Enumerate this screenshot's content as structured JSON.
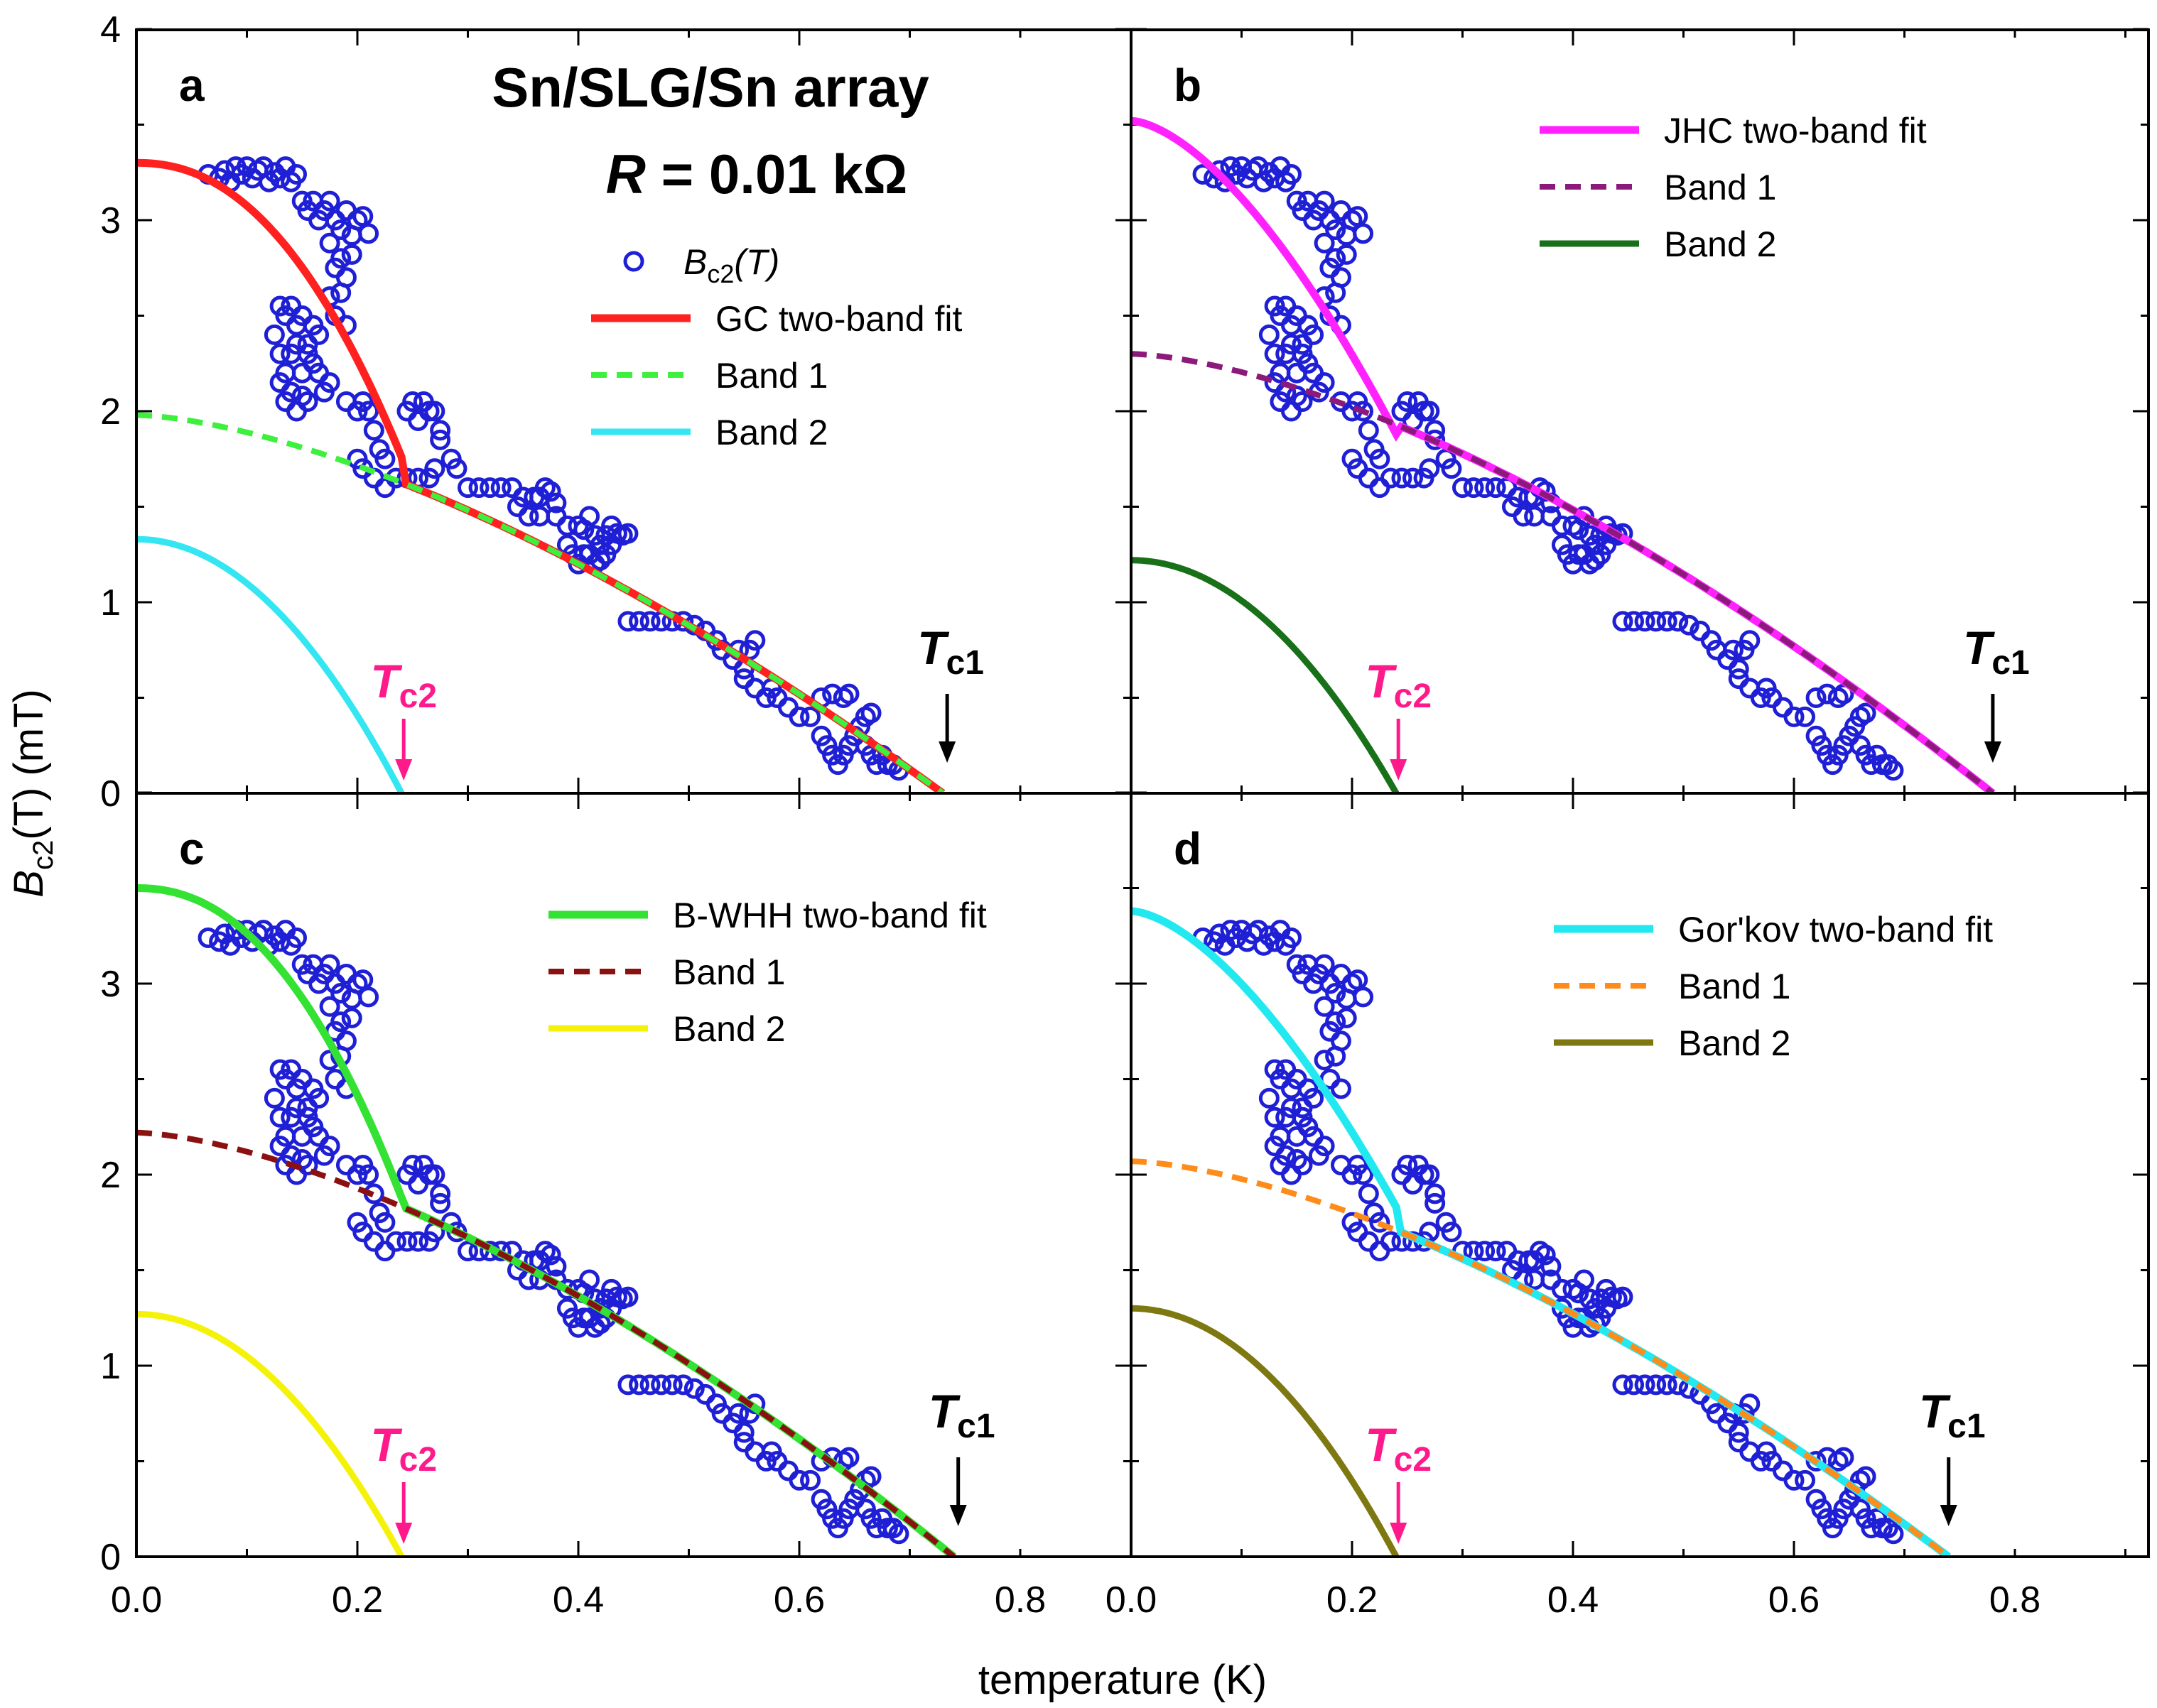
{
  "figure": {
    "x_axis_label": "temperature (K)",
    "y_axis_label_prefix": "B",
    "y_axis_label_sub": "c2",
    "y_axis_label_suffix": "(T) (mT)",
    "x_ticks": [
      0.0,
      0.2,
      0.4,
      0.6,
      0.8
    ],
    "x_tick_labels": [
      "0.0",
      "0.2",
      "0.4",
      "0.6",
      "0.8"
    ],
    "y_ticks_top": [
      0,
      1,
      2,
      3,
      4
    ],
    "y_tick_labels_top": [
      "0",
      "1",
      "2",
      "3",
      "4"
    ],
    "y_ticks_bottom": [
      0,
      1,
      2,
      3
    ],
    "y_tick_labels_bottom": [
      "0",
      "1",
      "2",
      "3"
    ],
    "xlim": [
      0.0,
      0.9
    ],
    "ylim": [
      0,
      4
    ],
    "title_line1": "Sn/SLG/Sn array",
    "title_line2_R": "R",
    "title_line2_value": " = 0.01 kΩ",
    "data_legend_prefix": "B",
    "data_legend_sub": "c2",
    "data_legend_suffix": "(T)",
    "tc2_main": "T",
    "tc2_sub": "c2",
    "tc1_main": "T",
    "tc1_sub": "c1",
    "colors": {
      "data_marker": "#1f1fd6",
      "tc2_arrow": "#ff1a8c",
      "tc1_arrow": "#000000"
    }
  },
  "chart_data": {
    "type": "scatter",
    "title": "Sn/SLG/Sn array  R = 0.01 kΩ",
    "xlabel": "temperature (K)",
    "ylabel": "Bc2(T) (mT)",
    "xlim": [
      0.0,
      0.9
    ],
    "ylim": [
      0,
      4
    ],
    "grid": false,
    "data_points": [
      [
        0.065,
        3.24
      ],
      [
        0.075,
        3.22
      ],
      [
        0.08,
        3.26
      ],
      [
        0.085,
        3.2
      ],
      [
        0.09,
        3.28
      ],
      [
        0.095,
        3.24
      ],
      [
        0.1,
        3.28
      ],
      [
        0.105,
        3.22
      ],
      [
        0.11,
        3.26
      ],
      [
        0.115,
        3.28
      ],
      [
        0.12,
        3.2
      ],
      [
        0.125,
        3.25
      ],
      [
        0.13,
        3.22
      ],
      [
        0.135,
        3.28
      ],
      [
        0.14,
        3.2
      ],
      [
        0.145,
        3.24
      ],
      [
        0.15,
        3.1
      ],
      [
        0.155,
        3.05
      ],
      [
        0.16,
        3.1
      ],
      [
        0.165,
        3.0
      ],
      [
        0.17,
        3.05
      ],
      [
        0.175,
        3.1
      ],
      [
        0.18,
        3.0
      ],
      [
        0.185,
        2.95
      ],
      [
        0.19,
        3.05
      ],
      [
        0.195,
        2.92
      ],
      [
        0.2,
        3.0
      ],
      [
        0.205,
        3.02
      ],
      [
        0.21,
        2.93
      ],
      [
        0.175,
        2.88
      ],
      [
        0.18,
        2.75
      ],
      [
        0.185,
        2.8
      ],
      [
        0.19,
        2.7
      ],
      [
        0.195,
        2.82
      ],
      [
        0.175,
        2.6
      ],
      [
        0.18,
        2.5
      ],
      [
        0.185,
        2.62
      ],
      [
        0.19,
        2.45
      ],
      [
        0.13,
        2.55
      ],
      [
        0.135,
        2.5
      ],
      [
        0.14,
        2.55
      ],
      [
        0.145,
        2.45
      ],
      [
        0.15,
        2.5
      ],
      [
        0.155,
        2.35
      ],
      [
        0.16,
        2.45
      ],
      [
        0.165,
        2.4
      ],
      [
        0.125,
        2.4
      ],
      [
        0.13,
        2.3
      ],
      [
        0.135,
        2.2
      ],
      [
        0.14,
        2.3
      ],
      [
        0.145,
        2.35
      ],
      [
        0.15,
        2.2
      ],
      [
        0.155,
        2.3
      ],
      [
        0.16,
        2.25
      ],
      [
        0.165,
        2.2
      ],
      [
        0.17,
        2.1
      ],
      [
        0.175,
        2.15
      ],
      [
        0.13,
        2.15
      ],
      [
        0.135,
        2.05
      ],
      [
        0.14,
        2.1
      ],
      [
        0.145,
        2.0
      ],
      [
        0.15,
        2.08
      ],
      [
        0.155,
        2.05
      ],
      [
        0.19,
        2.05
      ],
      [
        0.2,
        2.0
      ],
      [
        0.205,
        2.05
      ],
      [
        0.21,
        2.0
      ],
      [
        0.215,
        1.9
      ],
      [
        0.22,
        1.8
      ],
      [
        0.225,
        1.75
      ],
      [
        0.2,
        1.75
      ],
      [
        0.205,
        1.7
      ],
      [
        0.215,
        1.65
      ],
      [
        0.225,
        1.6
      ],
      [
        0.235,
        1.65
      ],
      [
        0.245,
        1.65
      ],
      [
        0.255,
        1.65
      ],
      [
        0.265,
        1.65
      ],
      [
        0.27,
        1.7
      ],
      [
        0.245,
        2.0
      ],
      [
        0.25,
        2.05
      ],
      [
        0.255,
        1.95
      ],
      [
        0.26,
        2.05
      ],
      [
        0.265,
        2.0
      ],
      [
        0.27,
        2.0
      ],
      [
        0.275,
        1.9
      ],
      [
        0.275,
        1.85
      ],
      [
        0.285,
        1.75
      ],
      [
        0.29,
        1.7
      ],
      [
        0.3,
        1.6
      ],
      [
        0.31,
        1.6
      ],
      [
        0.32,
        1.6
      ],
      [
        0.33,
        1.6
      ],
      [
        0.34,
        1.6
      ],
      [
        0.35,
        1.55
      ],
      [
        0.36,
        1.55
      ],
      [
        0.365,
        1.55
      ],
      [
        0.37,
        1.6
      ],
      [
        0.375,
        1.58
      ],
      [
        0.38,
        1.52
      ],
      [
        0.345,
        1.5
      ],
      [
        0.355,
        1.45
      ],
      [
        0.365,
        1.45
      ],
      [
        0.38,
        1.45
      ],
      [
        0.39,
        1.4
      ],
      [
        0.4,
        1.4
      ],
      [
        0.405,
        1.38
      ],
      [
        0.41,
        1.45
      ],
      [
        0.415,
        1.35
      ],
      [
        0.42,
        1.3
      ],
      [
        0.425,
        1.35
      ],
      [
        0.43,
        1.4
      ],
      [
        0.435,
        1.36
      ],
      [
        0.44,
        1.35
      ],
      [
        0.445,
        1.36
      ],
      [
        0.39,
        1.3
      ],
      [
        0.395,
        1.25
      ],
      [
        0.4,
        1.2
      ],
      [
        0.405,
        1.25
      ],
      [
        0.41,
        1.25
      ],
      [
        0.415,
        1.2
      ],
      [
        0.42,
        1.22
      ],
      [
        0.425,
        1.25
      ],
      [
        0.43,
        1.3
      ],
      [
        0.445,
        0.9
      ],
      [
        0.455,
        0.9
      ],
      [
        0.465,
        0.9
      ],
      [
        0.475,
        0.9
      ],
      [
        0.485,
        0.9
      ],
      [
        0.495,
        0.9
      ],
      [
        0.505,
        0.88
      ],
      [
        0.515,
        0.85
      ],
      [
        0.525,
        0.8
      ],
      [
        0.53,
        0.75
      ],
      [
        0.54,
        0.7
      ],
      [
        0.545,
        0.75
      ],
      [
        0.55,
        0.65
      ],
      [
        0.555,
        0.75
      ],
      [
        0.56,
        0.8
      ],
      [
        0.55,
        0.6
      ],
      [
        0.56,
        0.55
      ],
      [
        0.57,
        0.5
      ],
      [
        0.575,
        0.55
      ],
      [
        0.58,
        0.5
      ],
      [
        0.59,
        0.45
      ],
      [
        0.6,
        0.4
      ],
      [
        0.61,
        0.4
      ],
      [
        0.62,
        0.5
      ],
      [
        0.63,
        0.52
      ],
      [
        0.64,
        0.5
      ],
      [
        0.645,
        0.52
      ],
      [
        0.62,
        0.3
      ],
      [
        0.625,
        0.25
      ],
      [
        0.63,
        0.2
      ],
      [
        0.635,
        0.15
      ],
      [
        0.64,
        0.2
      ],
      [
        0.645,
        0.25
      ],
      [
        0.65,
        0.3
      ],
      [
        0.655,
        0.35
      ],
      [
        0.66,
        0.4
      ],
      [
        0.665,
        0.42
      ],
      [
        0.66,
        0.25
      ],
      [
        0.665,
        0.2
      ],
      [
        0.67,
        0.15
      ],
      [
        0.675,
        0.2
      ],
      [
        0.68,
        0.15
      ],
      [
        0.685,
        0.15
      ],
      [
        0.69,
        0.12
      ]
    ],
    "panels": [
      {
        "label": "a",
        "legend_fit": "GC two-band fit",
        "legend_band1": "Band 1",
        "legend_band2": "Band 2",
        "colors": {
          "fit": "#ff2020",
          "band1": "#3ef03e",
          "band2": "#33e6f2"
        },
        "tc1": 0.73,
        "tc2": 0.24,
        "band1_b0": 1.98,
        "band2_b0": 1.33,
        "fit_b0": 3.3,
        "kink": [
          0.24,
          1.76
        ],
        "fit_shape": 3.3
      },
      {
        "label": "b",
        "legend_fit": "JHC two-band fit",
        "legend_band1": "Band 1",
        "legend_band2": "Band 2",
        "colors": {
          "fit": "#ff22ff",
          "band1": "#8b1a7a",
          "band2": "#187018"
        },
        "tc1": 0.78,
        "tc2": 0.24,
        "band1_b0": 2.3,
        "band2_b0": 1.22,
        "fit_b0": 3.52,
        "kink": [
          0.24,
          1.88
        ],
        "fit_shape": 2.3
      },
      {
        "label": "c",
        "legend_fit": "B-WHH two-band fit",
        "legend_band1": "Band 1",
        "legend_band2": "Band 2",
        "colors": {
          "fit": "#33e233",
          "band1": "#8b1010",
          "band2": "#f5f20a"
        },
        "tc1": 0.74,
        "tc2": 0.24,
        "band1_b0": 2.22,
        "band2_b0": 1.27,
        "fit_b0": 3.5,
        "kink": [
          0.24,
          1.88
        ],
        "fit_shape": 2.8
      },
      {
        "label": "d",
        "legend_fit": "Gor'kov two-band fit",
        "legend_band1": "Band 1",
        "legend_band2": "Band 2",
        "colors": {
          "fit": "#22e8f0",
          "band1": "#ff8c1a",
          "band2": "#7d7810"
        },
        "tc1": 0.74,
        "tc2": 0.24,
        "band1_b0": 2.07,
        "band2_b0": 1.3,
        "fit_b0": 3.38,
        "kink": [
          0.24,
          1.83
        ],
        "fit_shape": 2.4
      }
    ]
  }
}
